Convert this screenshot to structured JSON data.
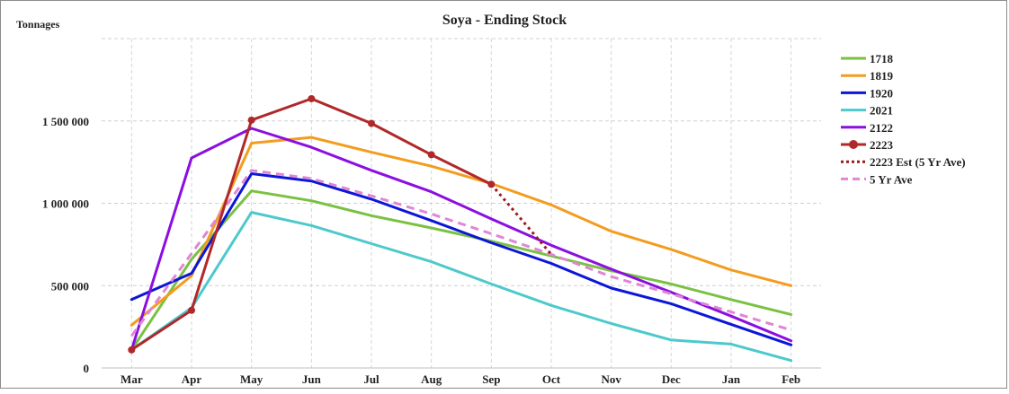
{
  "chart_data": {
    "type": "line",
    "title": "Soya - Ending Stock",
    "ylabel": "Tonnages",
    "xlabel": "",
    "categories": [
      "Mar",
      "Apr",
      "May",
      "Jun",
      "Jul",
      "Aug",
      "Sep",
      "Oct",
      "Nov",
      "Dec",
      "Jan",
      "Feb"
    ],
    "ylim": [
      0,
      2000000
    ],
    "yticks": [
      0,
      500000,
      1000000,
      1500000
    ],
    "ytick_labels": [
      "0",
      "500 000",
      "1 000 000",
      "1 500 000"
    ],
    "grid": true,
    "legend_position": "right",
    "series": [
      {
        "name": "1718",
        "color": "#7ac143",
        "style": "solid",
        "markers": false,
        "values": [
          110000,
          660000,
          1075000,
          1015000,
          925000,
          850000,
          770000,
          680000,
          590000,
          510000,
          415000,
          325000
        ]
      },
      {
        "name": "1819",
        "color": "#f39c1f",
        "style": "solid",
        "markers": false,
        "values": [
          260000,
          560000,
          1365000,
          1400000,
          1310000,
          1225000,
          1120000,
          990000,
          830000,
          720000,
          595000,
          500000
        ]
      },
      {
        "name": "1920",
        "color": "#0b16d8",
        "style": "solid",
        "markers": false,
        "values": [
          415000,
          575000,
          1180000,
          1135000,
          1025000,
          895000,
          760000,
          635000,
          485000,
          390000,
          265000,
          140000
        ]
      },
      {
        "name": "2021",
        "color": "#4dc9cc",
        "style": "solid",
        "markers": false,
        "values": [
          110000,
          365000,
          945000,
          865000,
          755000,
          645000,
          510000,
          380000,
          270000,
          170000,
          145000,
          45000
        ]
      },
      {
        "name": "2122",
        "color": "#8b0fe0",
        "style": "solid",
        "markers": false,
        "values": [
          110000,
          1275000,
          1455000,
          1340000,
          1200000,
          1070000,
          905000,
          745000,
          600000,
          460000,
          315000,
          165000
        ]
      },
      {
        "name": "2223",
        "color": "#b0282a",
        "style": "solid",
        "markers": true,
        "values": [
          110000,
          350000,
          1505000,
          1635000,
          1485000,
          1295000,
          1115000,
          null,
          null,
          null,
          null,
          null
        ]
      },
      {
        "name": "2223 Est (5 Yr Ave)",
        "color": "#9b1b1b",
        "style": "dotted",
        "markers": false,
        "values": [
          null,
          null,
          null,
          null,
          null,
          null,
          1115000,
          690000,
          null,
          null,
          null,
          null
        ]
      },
      {
        "name": "5 Yr Ave",
        "color": "#df86d6",
        "style": "dashed",
        "markers": false,
        "values": [
          195000,
          695000,
          1200000,
          1150000,
          1045000,
          935000,
          815000,
          690000,
          555000,
          450000,
          340000,
          230000
        ]
      }
    ]
  }
}
